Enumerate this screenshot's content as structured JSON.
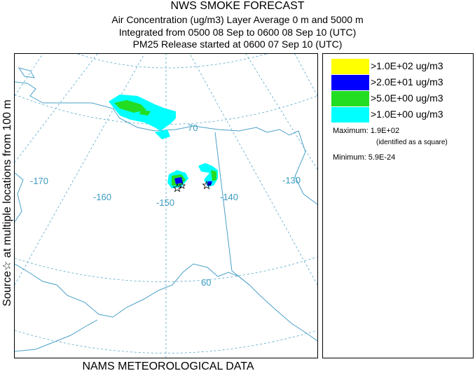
{
  "title": {
    "line1": "NWS SMOKE FORECAST",
    "line2": "Air Concentration (ug/m3) Layer Average    0 m and  5000 m",
    "line3": "Integrated from 0500 08 Sep to 0600 08 Sep 10 (UTC)",
    "line4": "PM25 Release started at 0600 07 Sep 10 (UTC)"
  },
  "left_label": "Source☆ at multiple locations from 100 m",
  "bottom_label": "NAMS METEOROLOGICAL DATA",
  "map": {
    "longitude_labels": [
      "-170",
      "-160",
      "-150",
      "-140",
      "-130"
    ],
    "latitude_labels": [
      "70",
      "60"
    ],
    "colors": {
      "graticule": "#5aa8cc",
      "coast": "#4aa0c8",
      "level_gt_100": "#ffff00",
      "level_gt_20": "#0000ff",
      "level_gt_5": "#22dd22",
      "level_gt_1": "#00ffff"
    }
  },
  "legend": {
    "items": [
      {
        "label": ">1.0E+02 ug/m3",
        "color": "#ffff00"
      },
      {
        "label": ">2.0E+01 ug/m3",
        "color": "#0000ff"
      },
      {
        "label": ">5.0E+00 ug/m3",
        "color": "#22dd22"
      },
      {
        "label": ">1.0E+00 ug/m3",
        "color": "#00ffff"
      }
    ],
    "maximum": "Maximum: 1.9E+02",
    "maximum_note": "(identified as a square)",
    "minimum": "Minimum: 5.9E-24"
  }
}
